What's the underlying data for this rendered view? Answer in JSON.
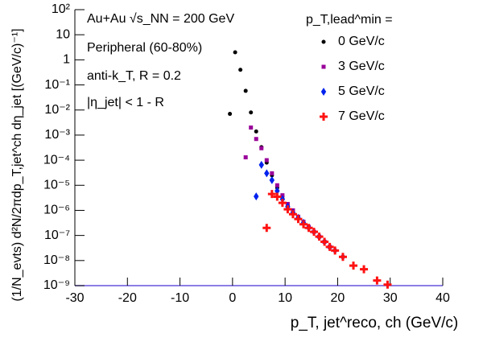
{
  "chart_data": {
    "type": "scatter",
    "x_label": "p_T, jet^reco, ch (GeV/c)",
    "y_label": "(1/N_evts) d²N/2πdp_T,jet^ch dη_jet [(GeV/c)⁻¹]",
    "annotations": [
      "Au+Au √s_NN = 200 GeV",
      "Peripheral (60-80%)",
      "anti-k_T, R = 0.2",
      "|η_jet| < 1 - R"
    ],
    "legend_title": "p_T,lead^min =",
    "legend": "top-right",
    "log_y": true,
    "xlim": [
      -30,
      40
    ],
    "xticks": [
      -30,
      -20,
      -10,
      0,
      10,
      20,
      30,
      40
    ],
    "ylim": [
      1e-09,
      100
    ],
    "yticks": [
      {
        "value": 1e-09,
        "label": "10⁻⁹"
      },
      {
        "value": 1e-08,
        "label": "10⁻⁸"
      },
      {
        "value": 1e-07,
        "label": "10⁻⁷"
      },
      {
        "value": 1e-06,
        "label": "10⁻⁶"
      },
      {
        "value": 1e-05,
        "label": "10⁻⁵"
      },
      {
        "value": 0.0001,
        "label": "10⁻⁴"
      },
      {
        "value": 0.001,
        "label": "10⁻³"
      },
      {
        "value": 0.01,
        "label": "10⁻²"
      },
      {
        "value": 0.1,
        "label": "10⁻¹"
      },
      1,
      10,
      {
        "value": 100,
        "label": "10²"
      }
    ],
    "series": [
      {
        "name": "0 GeV/c",
        "color": "#000000",
        "marker": "circle",
        "x": [
          -0.5,
          0.5,
          1.5,
          2.5,
          3.5,
          4.5,
          5.5,
          6.5,
          7.5,
          8.5,
          9.5,
          10.5,
          11.5,
          12.5,
          13.5
        ],
        "values": [
          0.007,
          2,
          0.4,
          0.058,
          0.008,
          0.0014,
          0.00033,
          8e-05,
          2.5e-05,
          8e-06,
          3.5e-06,
          1.6e-06,
          9e-07,
          5e-07,
          3e-07
        ]
      },
      {
        "name": "3 GeV/c",
        "color": "#990099",
        "marker": "square",
        "x": [
          2.5,
          3.5,
          4.5,
          5.5,
          6.5,
          7.5,
          8.5,
          9.5,
          10.5,
          11.5,
          12.5,
          13.5,
          14.5,
          15.5,
          16.5,
          17.5,
          18.5
        ],
        "values": [
          0.00013,
          0.002,
          0.0007,
          0.0003,
          0.0001,
          3e-05,
          1e-05,
          4e-06,
          1.8e-06,
          1e-06,
          5.6e-07,
          3.5e-07,
          2.2e-07,
          1.4e-07,
          9e-08,
          5.6e-08,
          3.5e-08
        ]
      },
      {
        "name": "5 GeV/c",
        "color": "#0022ee",
        "marker": "diamond",
        "x": [
          4.5,
          5.5,
          6.5,
          7.5,
          8.5,
          9.5,
          10.5,
          11.5,
          12.5,
          13.5,
          14.5,
          15.5,
          16.5,
          17.5,
          18.5,
          19.5,
          21
        ],
        "values": [
          3.6e-06,
          6.5e-05,
          3e-05,
          1.6e-05,
          6e-06,
          2.8e-06,
          1.4e-06,
          8e-07,
          5e-07,
          3.2e-07,
          2e-07,
          1.4e-07,
          9e-08,
          5.6e-08,
          3.5e-08,
          2.5e-08,
          1.4e-08
        ]
      },
      {
        "name": "7 GeV/c",
        "color": "#ff1111",
        "marker": "cross",
        "x": [
          6.5,
          7.5,
          8.5,
          9.5,
          10.5,
          11.5,
          12.5,
          13.5,
          14.5,
          15.5,
          16.5,
          17.5,
          18.5,
          19.5,
          21,
          23,
          25,
          27.5,
          29.5
        ],
        "values": [
          2e-07,
          4.5e-06,
          3.5e-06,
          2e-06,
          1.1e-06,
          7e-07,
          4.5e-07,
          2.8e-07,
          2e-07,
          1.4e-07,
          9e-08,
          5.6e-08,
          3.5e-08,
          2.5e-08,
          1.4e-08,
          6.3e-09,
          4.5e-09,
          1.6e-09,
          1.1e-09
        ]
      }
    ]
  }
}
